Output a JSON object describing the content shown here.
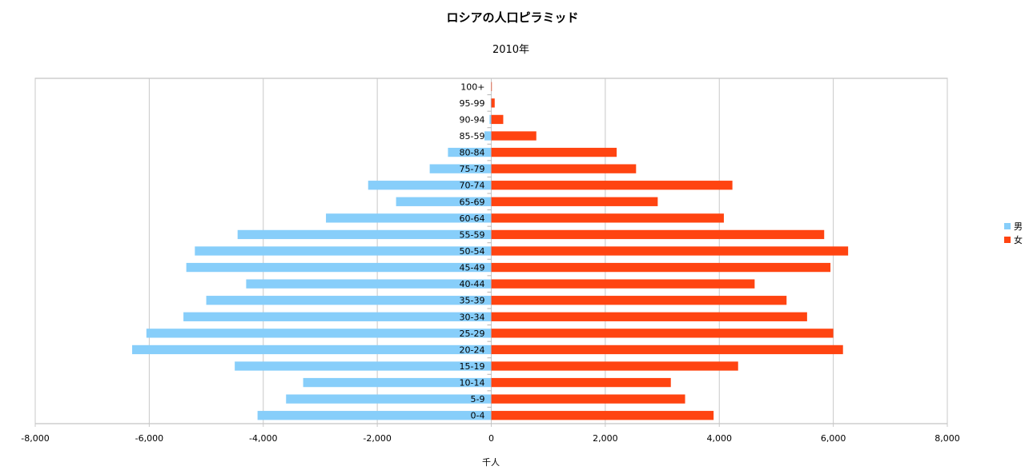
{
  "chart_data": {
    "type": "bar",
    "orientation": "horizontal",
    "title": "ロシアの人口ピラミッド",
    "subtitle": "2010年",
    "xlabel": "千人",
    "xlim": [
      -8000,
      8000
    ],
    "xticks": [
      -8000,
      -6000,
      -4000,
      -2000,
      0,
      2000,
      4000,
      6000,
      8000
    ],
    "xtick_labels": [
      "-8,000",
      "-6,000",
      "-4,000",
      "-2,000",
      "0",
      "2,000",
      "4,000",
      "6,000",
      "8,000"
    ],
    "grid": true,
    "legend": "right",
    "categories": [
      "0-4",
      "5-9",
      "10-14",
      "15-19",
      "20-24",
      "25-29",
      "30-34",
      "35-39",
      "40-44",
      "45-49",
      "50-54",
      "55-59",
      "60-64",
      "65-69",
      "70-74",
      "75-79",
      "80-84",
      "85-59",
      "90-94",
      "95-99",
      "100+"
    ],
    "series": [
      {
        "name": "男",
        "color": "#87CEFA",
        "values": [
          -4100,
          -3600,
          -3300,
          -4500,
          -6300,
          -6050,
          -5400,
          -5000,
          -4300,
          -5350,
          -5200,
          -4450,
          -2900,
          -1670,
          -2160,
          -1080,
          -760,
          -120,
          -30,
          -10,
          -3
        ]
      },
      {
        "name": "女",
        "color": "#FF4411",
        "values": [
          3900,
          3400,
          3150,
          4330,
          6170,
          6000,
          5540,
          5180,
          4620,
          5950,
          6260,
          5840,
          4080,
          2920,
          4230,
          2540,
          2200,
          790,
          210,
          60,
          10
        ]
      }
    ]
  },
  "colors": {
    "grid": "#c8c8c8",
    "axis": "#b4b4b4"
  }
}
